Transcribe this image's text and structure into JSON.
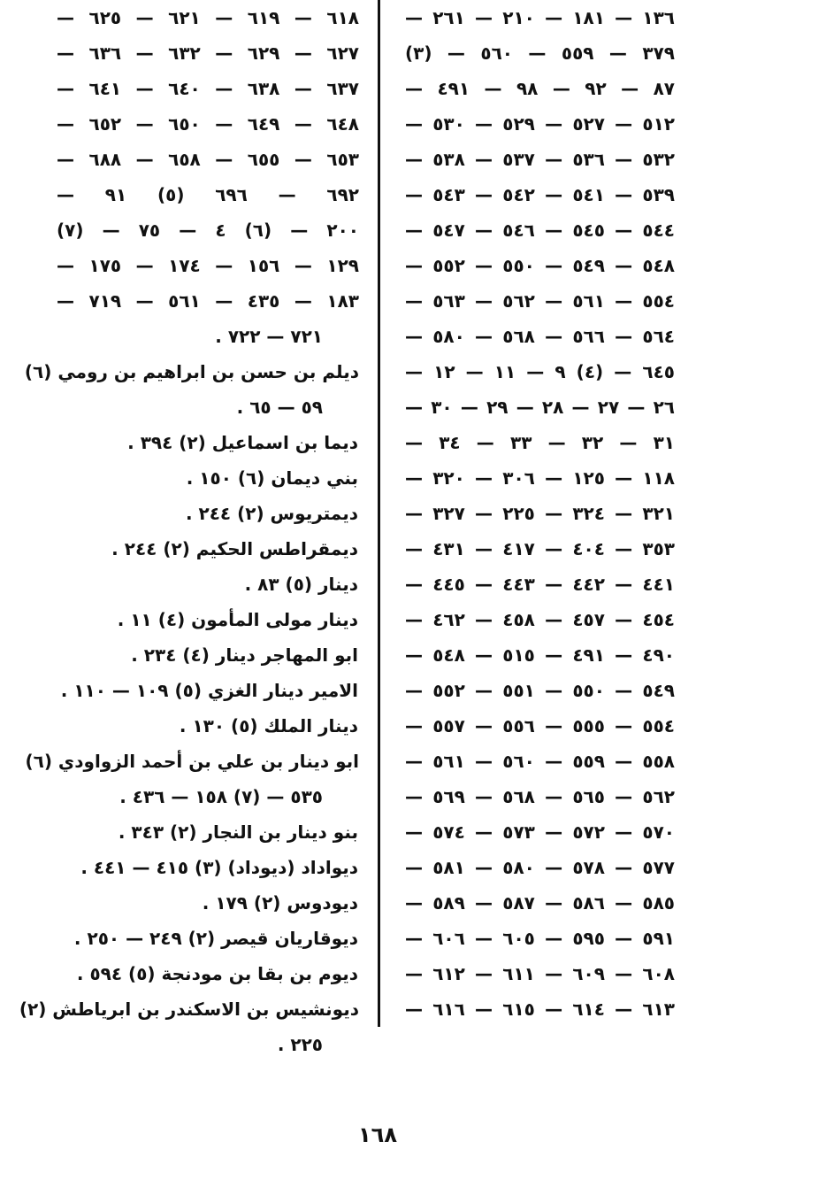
{
  "right_column": {
    "lines": [
      "١٣٦ — ١٨١ — ٢١٠ — ٢٦١ —",
      "٣٧٩ — ٥٥٩ — ٥٦٠ — (٣)",
      "٨٧ — ٩٢ — ٩٨ — ٤٩١ —",
      "٥١٢ — ٥٢٧ — ٥٢٩ — ٥٣٠ —",
      "٥٣٢ — ٥٣٦ — ٥٣٧ — ٥٣٨ —",
      "٥٣٩ — ٥٤١ — ٥٤٢ — ٥٤٣ —",
      "٥٤٤ — ٥٤٥ — ٥٤٦ — ٥٤٧ —",
      "٥٤٨ — ٥٤٩ — ٥٥٠ — ٥٥٢ —",
      "٥٥٤ — ٥٦١ — ٥٦٢ — ٥٦٣ —",
      "٥٦٤ — ٥٦٦ — ٥٦٨ — ٥٨٠ —",
      "٦٤٥ — (٤) ٩ — ١١ — ١٢ —",
      "٢٦ — ٢٧ — ٢٨ — ٢٩ — ٣٠ —",
      "٣١ — ٣٢ — ٣٣ — ٣٤ —",
      "١١٨ — ١٢٥ — ٣٠٦ — ٣٢٠ —",
      "٣٢١ — ٣٢٤ — ٢٢٥ — ٣٢٧ —",
      "٣٥٣ — ٤٠٤ — ٤١٧ — ٤٣١ —",
      "٤٤١ — ٤٤٢ — ٤٤٣ — ٤٤٥ —",
      "٤٥٤ — ٤٥٧ — ٤٥٨ — ٤٦٢ —",
      "٤٩٠ — ٤٩١ — ٥١٥ — ٥٤٨ —",
      "٥٤٩ — ٥٥٠ — ٥٥١ — ٥٥٢ —",
      "٥٥٤ — ٥٥٥ — ٥٥٦ — ٥٥٧ —",
      "٥٥٨ — ٥٥٩ — ٥٦٠ — ٥٦١ —",
      "٥٦٢ — ٥٦٥ — ٥٦٨ — ٥٦٩ —",
      "٥٧٠ — ٥٧٢ — ٥٧٣ — ٥٧٤ —",
      "٥٧٧ — ٥٧٨ — ٥٨٠ — ٥٨١ —",
      "٥٨٥ — ٥٨٦ — ٥٨٧ — ٥٨٩ —",
      "٥٩١ — ٥٩٥ — ٦٠٥ — ٦٠٦ —",
      "٦٠٨ — ٦٠٩ — ٦١١ — ٦١٢ —",
      "٦١٣ — ٦١٤ — ٦١٥ — ٦١٦ —"
    ]
  },
  "left_column": {
    "lines": [
      "٦١٨ — ٦١٩ — ٦٢١ — ٦٢٥ —",
      "٦٢٧ — ٦٢٩ — ٦٣٢ — ٦٣٦ —",
      "٦٣٧ — ٦٣٨ — ٦٤٠ — ٦٤١ —",
      "٦٤٨ — ٦٤٩ — ٦٥٠ — ٦٥٢ —",
      "٦٥٣ — ٦٥٥ — ٦٥٨ — ٦٨٨ —",
      "٦٩٢ — ٦٩٦ (٥) ٩١ —",
      "٢٠٠ — (٦) ٤ — ٧٥ — (٧)",
      "١٢٩ — ١٥٦ — ١٧٤ — ١٧٥ —",
      "١٨٣ — ٤٣٥ — ٥٦١ — ٧١٩ —",
      "٧٢١ — ٧٢٢ .",
      "ديلم بن حسن بن ابراهيم بن رومي (٦)",
      "٥٩ — ٦٥ .",
      "ديما بن اسماعيل (٢) ٣٩٤ .",
      "بني ديمان (٦) ١٥٠ .",
      "ديمتريوس (٢) ٢٤٤ .",
      "ديمقراطس الحكيم (٢) ٢٤٤ .",
      "دينار (٥) ٨٣ .",
      "دينار مولى المأمون (٤) ١١ .",
      "ابو المهاجر دينار (٤) ٢٣٤ .",
      "الامير دينار الغزي (٥) ١٠٩ — ١١٠ .",
      "دينار الملك (٥) ١٣٠ .",
      "ابو دينار بن علي بن أحمد الزواودي (٦)",
      "٥٣٥ — (٧) ١٥٨ — ٤٣٦ .",
      "بنو دينار بن النجار (٢) ٣٤٣ .",
      "ديواداد (ديوداد) (٣) ٤١٥ — ٤٤١ .",
      "ديودوس (٢) ١٧٩ .",
      "ديوقاريان قيصر (٢) ٢٤٩ — ٢٥٠ .",
      "ديوم بن بقا بن مودنجة (٥) ٥٩٤ .",
      "ديونشيس بن الاسكندر بن ابرياطش (٢)",
      "٢٢٥ ."
    ]
  },
  "page_number": "١٦٨"
}
